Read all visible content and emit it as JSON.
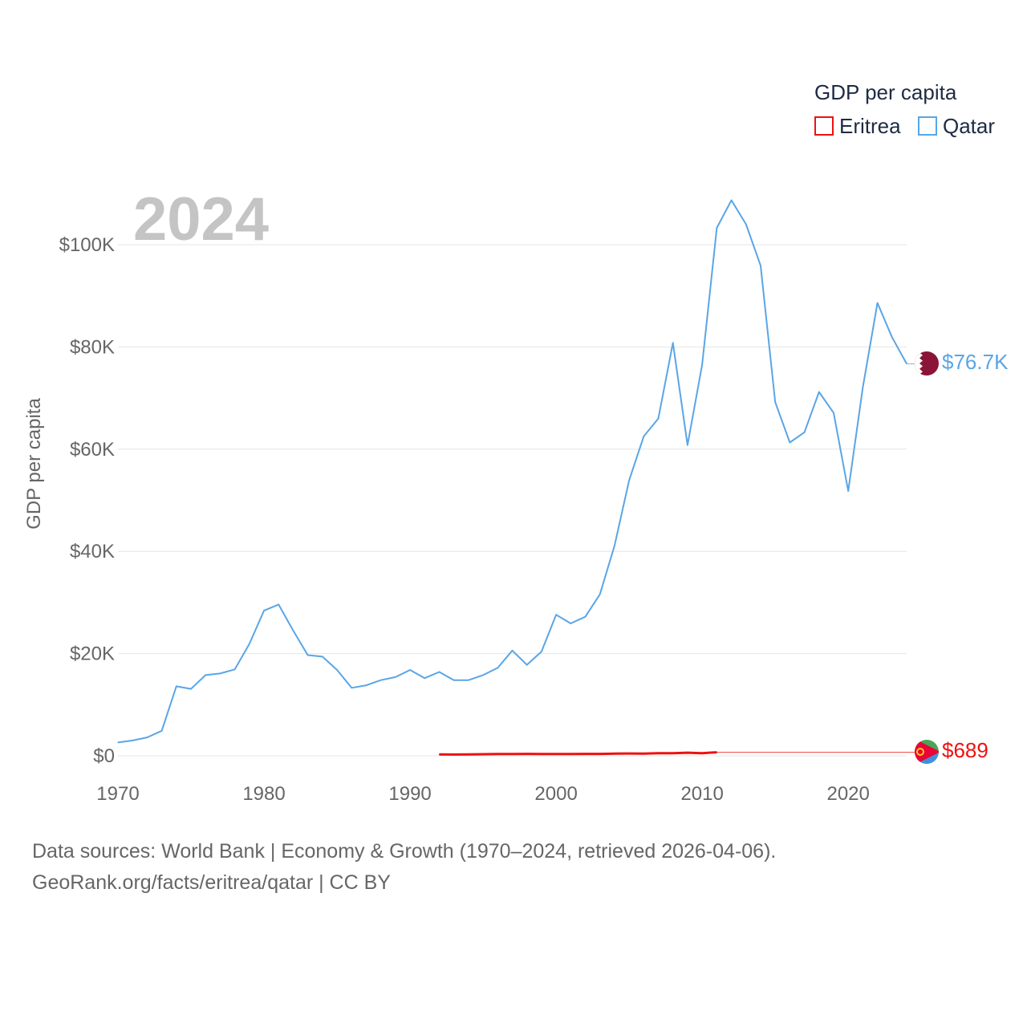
{
  "chart_data": {
    "type": "line",
    "title": "GDP per capita",
    "highlight_year": "2024",
    "xlabel": "",
    "ylabel": "GDP per capita",
    "xlim": [
      1970,
      2024
    ],
    "ylim": [
      0,
      110000
    ],
    "x_ticks": [
      {
        "value": 1970,
        "label": "1970"
      },
      {
        "value": 1980,
        "label": "1980"
      },
      {
        "value": 1990,
        "label": "1990"
      },
      {
        "value": 2000,
        "label": "2000"
      },
      {
        "value": 2010,
        "label": "2010"
      },
      {
        "value": 2020,
        "label": "2020"
      }
    ],
    "y_ticks": [
      {
        "value": 0,
        "label": "$0"
      },
      {
        "value": 20000,
        "label": "$20K"
      },
      {
        "value": 40000,
        "label": "$40K"
      },
      {
        "value": 60000,
        "label": "$60K"
      },
      {
        "value": 80000,
        "label": "$80K"
      },
      {
        "value": 100000,
        "label": "$100K"
      }
    ],
    "legend": {
      "title": "GDP per capita",
      "placement": "top-right"
    },
    "series": [
      {
        "name": "Eritrea",
        "color": "#ee1111",
        "flag_icon": "eritrea-flag-icon",
        "end_label": "$689",
        "end_value": 689,
        "x": [
          1992,
          1993,
          1994,
          1995,
          1996,
          1997,
          1998,
          1999,
          2000,
          2001,
          2002,
          2003,
          2004,
          2005,
          2006,
          2007,
          2008,
          2009,
          2010,
          2011
        ],
        "values": [
          270,
          250,
          280,
          320,
          360,
          340,
          380,
          350,
          340,
          360,
          370,
          380,
          430,
          450,
          440,
          500,
          520,
          620,
          520,
          690
        ]
      },
      {
        "name": "Qatar",
        "color": "#5aa5e6",
        "flag_icon": "qatar-flag-icon",
        "end_label": "$76.7K",
        "end_value": 76700,
        "x": [
          1970,
          1971,
          1972,
          1973,
          1974,
          1975,
          1976,
          1977,
          1978,
          1979,
          1980,
          1981,
          1982,
          1983,
          1984,
          1985,
          1986,
          1987,
          1988,
          1989,
          1990,
          1991,
          1992,
          1993,
          1994,
          1995,
          1996,
          1997,
          1998,
          1999,
          2000,
          2001,
          2002,
          2003,
          2004,
          2005,
          2006,
          2007,
          2008,
          2009,
          2010,
          2011,
          2012,
          2013,
          2014,
          2015,
          2016,
          2017,
          2018,
          2019,
          2020,
          2021,
          2022,
          2023,
          2024
        ],
        "values": [
          2600,
          3000,
          3600,
          4900,
          13600,
          13100,
          15800,
          16100,
          16900,
          21900,
          28400,
          29600,
          24500,
          19700,
          19400,
          16800,
          13300,
          13800,
          14800,
          15400,
          16800,
          15200,
          16400,
          14800,
          14800,
          15800,
          17200,
          20600,
          17800,
          20400,
          27600,
          25900,
          27200,
          31600,
          41100,
          53900,
          62500,
          66000,
          80800,
          60800,
          76500,
          103300,
          108700,
          104000,
          95900,
          69200,
          61300,
          63300,
          71200,
          67100,
          51800,
          72100,
          88600,
          81900,
          76700
        ]
      }
    ]
  },
  "footer": {
    "line1": "Data sources: World Bank | Economy & Growth (1970–2024, retrieved 2026-04-06).",
    "line2": "GeoRank.org/facts/eritrea/qatar | CC BY"
  }
}
